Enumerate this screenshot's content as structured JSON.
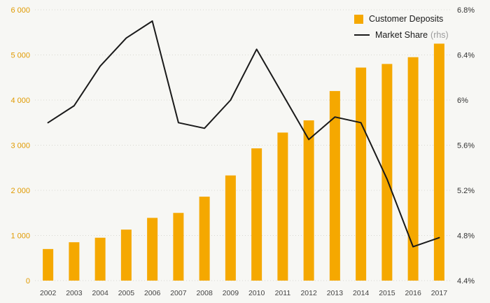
{
  "chart_data": {
    "type": "bar",
    "subtype": "combo-bar-line",
    "title": "",
    "categories": [
      "2002",
      "2003",
      "2004",
      "2005",
      "2006",
      "2007",
      "2008",
      "2009",
      "2010",
      "2011",
      "2012",
      "2013",
      "2014",
      "2015",
      "2016",
      "2017"
    ],
    "series": [
      {
        "name": "Customer Deposits",
        "type": "bar",
        "axis": "left",
        "color": "#F5A800",
        "values": [
          700,
          850,
          950,
          1130,
          1390,
          1500,
          1860,
          2330,
          2930,
          3280,
          3550,
          4200,
          4720,
          4800,
          4950,
          5250
        ]
      },
      {
        "name": "Market Share",
        "type": "line",
        "axis": "right",
        "color": "#1a1a1a",
        "values": [
          5.8,
          5.95,
          6.3,
          6.55,
          6.7,
          5.8,
          5.75,
          6.0,
          6.45,
          6.05,
          5.65,
          5.85,
          5.8,
          5.3,
          4.7,
          4.78
        ]
      }
    ],
    "left_axis": {
      "min": 0,
      "max": 6000,
      "step": 1000,
      "labels": [
        "0",
        "1 000",
        "2 000",
        "3 000",
        "4 000",
        "5 000",
        "6 000"
      ],
      "label_color": "#E09A00"
    },
    "right_axis": {
      "min": 4.4,
      "max": 6.8,
      "step": 0.4,
      "labels": [
        "4.4%",
        "4.8%",
        "5.2%",
        "5.6%",
        "6%",
        "6.4%",
        "6.8%"
      ],
      "label_color": "#333333"
    },
    "x_axis": {
      "label_color": "#444444"
    },
    "grid": {
      "visible": true,
      "style": "dotted",
      "color": "#d8d8d2"
    },
    "legend": {
      "position": "top-right",
      "items": [
        {
          "label": "Customer Deposits",
          "suffix": "",
          "swatch": "square",
          "color": "#F5A800"
        },
        {
          "label": "Market Share",
          "suffix": "(rhs)",
          "swatch": "line",
          "color": "#1a1a1a"
        }
      ]
    },
    "background": "#f7f7f4"
  }
}
